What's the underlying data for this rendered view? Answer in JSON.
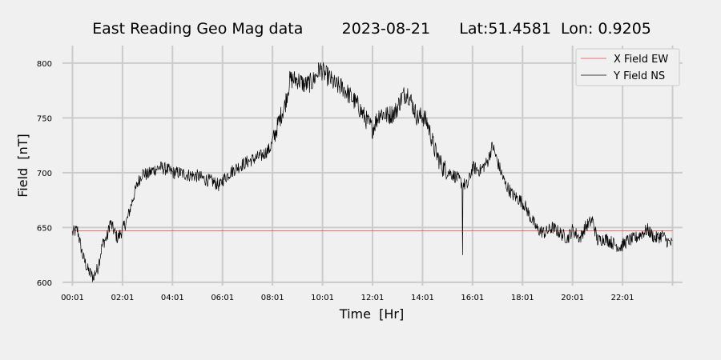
{
  "chart_data": {
    "type": "line",
    "title": "East Reading Geo Mag data        2023-08-21      Lat:51.4581  Lon: 0.9205",
    "xlabel": "Time  [Hr]",
    "ylabel": "Field  [nT]",
    "xlim": [
      -0.4,
      24.4
    ],
    "ylim": [
      597,
      816
    ],
    "x_ticks": [
      0,
      2,
      4,
      6,
      8,
      10,
      12,
      14,
      16,
      18,
      20,
      22,
      24
    ],
    "x_tick_labels": [
      "00:01",
      "02:01",
      "04:01",
      "06:01",
      "08:01",
      "10:01",
      "12:01",
      "14:01",
      "16:01",
      "18:01",
      "20:01",
      "22:01",
      ""
    ],
    "y_ticks": [
      600,
      650,
      700,
      750,
      800
    ],
    "y_tick_labels": [
      "600",
      "650",
      "700",
      "750",
      "800"
    ],
    "grid": true,
    "legend_position": "top-right",
    "colors": {
      "background": "#f0f0f0",
      "grid": "#cbcbcb",
      "x_series": "#e8423c",
      "y_series": "#000000"
    },
    "series": [
      {
        "name": "X Field EW",
        "color": "#e8423c",
        "x": [
          0,
          24
        ],
        "values": [
          647,
          647
        ]
      },
      {
        "name": "Y Field NS",
        "color": "#000000",
        "x": [
          0,
          0.2,
          0.4,
          0.6,
          0.8,
          1.0,
          1.2,
          1.4,
          1.5,
          1.6,
          1.8,
          2.0,
          2.2,
          2.4,
          2.6,
          2.8,
          3.0,
          3.2,
          3.5,
          3.8,
          4.0,
          4.3,
          4.6,
          5.0,
          5.3,
          5.6,
          5.9,
          6.0,
          6.3,
          6.6,
          7.0,
          7.3,
          7.6,
          7.9,
          8.1,
          8.3,
          8.5,
          8.7,
          9.0,
          9.3,
          9.6,
          9.9,
          10.1,
          10.3,
          10.5,
          10.8,
          11.1,
          11.4,
          11.7,
          12.0,
          12.3,
          12.6,
          12.9,
          13.2,
          13.4,
          13.6,
          13.8,
          14.0,
          14.2,
          14.5,
          14.8,
          15.1,
          15.4,
          15.6,
          15.8,
          16.0,
          16.3,
          16.6,
          16.8,
          17.0,
          17.3,
          17.6,
          17.9,
          18.1,
          18.3,
          18.6,
          18.9,
          19.2,
          19.5,
          19.8,
          20.0,
          20.3,
          20.5,
          20.8,
          21.0,
          21.3,
          21.6,
          21.9,
          22.2,
          22.5,
          22.8,
          23.0,
          23.3,
          23.6,
          23.8,
          24.0
        ],
        "values": [
          645,
          648,
          625,
          612,
          605,
          612,
          635,
          642,
          655,
          650,
          640,
          648,
          658,
          675,
          690,
          700,
          698,
          702,
          705,
          703,
          700,
          700,
          698,
          697,
          694,
          692,
          688,
          693,
          700,
          705,
          710,
          713,
          716,
          722,
          735,
          750,
          762,
          785,
          785,
          780,
          783,
          795,
          790,
          786,
          780,
          778,
          770,
          762,
          750,
          740,
          755,
          752,
          755,
          770,
          773,
          762,
          750,
          752,
          745,
          720,
          705,
          700,
          695,
          690,
          688,
          705,
          702,
          710,
          725,
          710,
          690,
          680,
          675,
          670,
          660,
          648,
          645,
          650,
          645,
          640,
          648,
          640,
          650,
          657,
          638,
          640,
          636,
          632,
          638,
          640,
          645,
          648,
          640,
          643,
          637,
          635
        ]
      }
    ]
  }
}
